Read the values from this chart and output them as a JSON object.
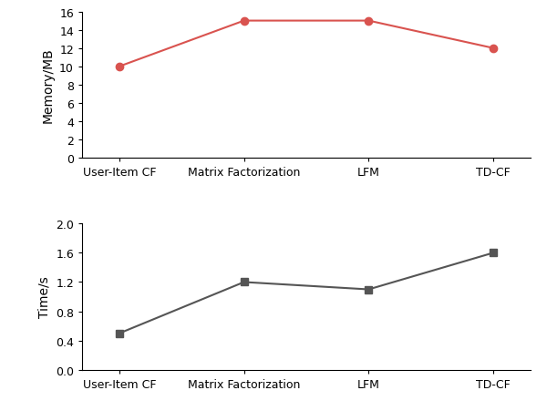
{
  "categories": [
    "User-Item CF",
    "Matrix Factorization",
    "LFM",
    "TD-CF"
  ],
  "memory_values": [
    10,
    15,
    15,
    12
  ],
  "time_values": [
    0.5,
    1.2,
    1.1,
    1.6
  ],
  "memory_color": "#d9534f",
  "time_color": "#555555",
  "memory_ylabel": "Memory/MB",
  "time_ylabel": "Time/s",
  "memory_ylim": [
    0,
    16
  ],
  "time_ylim": [
    0.0,
    2.0
  ],
  "memory_yticks": [
    0,
    2,
    4,
    6,
    8,
    10,
    12,
    14,
    16
  ],
  "time_yticks": [
    0.0,
    0.4,
    0.8,
    1.2,
    1.6,
    2.0
  ],
  "background_color": "#ffffff",
  "figsize": [
    6.0,
    4.52
  ],
  "dpi": 100
}
